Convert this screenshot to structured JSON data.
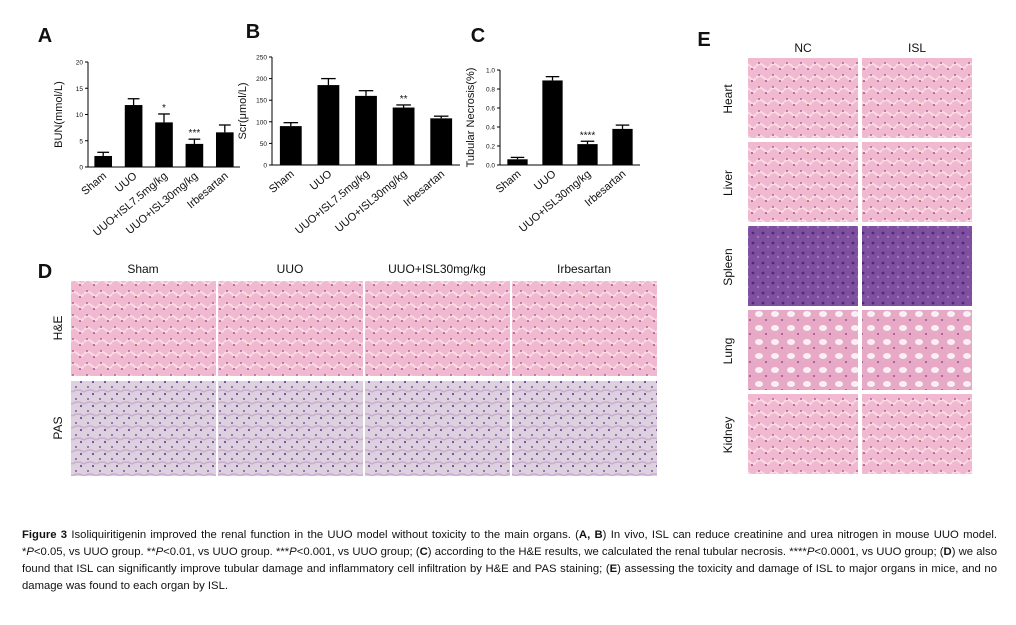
{
  "chart_data": [
    {
      "type": "bar",
      "label": "A",
      "ylabel": "BUN(mmol/L)",
      "categories": [
        "Sham",
        "UUO",
        "UUO+ISL7.5mg/kg",
        "UUO+ISL30mg/kg",
        "Irbesartan"
      ],
      "values": [
        2.1,
        11.8,
        8.5,
        4.4,
        6.6
      ],
      "errors": [
        0.7,
        1.2,
        1.6,
        0.9,
        1.4
      ],
      "significance": [
        null,
        null,
        "*",
        "***",
        null
      ],
      "color": "#000000",
      "ylim": [
        0,
        20
      ],
      "yticks": [
        0,
        5,
        10,
        15,
        20
      ]
    },
    {
      "type": "bar",
      "label": "B",
      "ylabel": "Scr(μmol/L)",
      "categories": [
        "Sham",
        "UUO",
        "UUO+ISL7.5mg/kg",
        "UUO+ISL30mg/kg",
        "Irbesartan"
      ],
      "values": [
        90,
        185,
        160,
        133,
        108
      ],
      "errors": [
        8,
        15,
        12,
        6,
        5
      ],
      "significance": [
        null,
        null,
        null,
        "**",
        null
      ],
      "color": "#000000",
      "ylim": [
        0,
        250
      ],
      "yticks": [
        0,
        50,
        100,
        150,
        200,
        250
      ]
    },
    {
      "type": "bar",
      "label": "C",
      "ylabel": "Tubular Necrosis(%)",
      "categories": [
        "Sham",
        "UUO",
        "UUO+ISL30mg/kg",
        "Irbesartan"
      ],
      "values": [
        0.06,
        0.89,
        0.22,
        0.38
      ],
      "errors": [
        0.02,
        0.04,
        0.03,
        0.04
      ],
      "significance": [
        null,
        null,
        "****",
        null
      ],
      "color": "#000000",
      "ylim": [
        0,
        1.0
      ],
      "yticks": [
        {
          "value": 0,
          "label": "0.0"
        },
        0.2,
        0.4,
        0.6,
        0.8,
        {
          "value": 1,
          "label": "1.0"
        }
      ]
    }
  ],
  "panel_d": {
    "label": "D",
    "columns": [
      "Sham",
      "UUO",
      "UUO+ISL30mg/kg",
      "Irbesartan"
    ],
    "rows": [
      "H&E",
      "PAS"
    ]
  },
  "panel_e": {
    "label": "E",
    "columns": [
      "NC",
      "ISL"
    ],
    "rows": [
      "Heart",
      "Liver",
      "Spleen",
      "Lung",
      "Kidney"
    ]
  },
  "caption": [
    {
      "text": "Figure 3",
      "bold": true
    },
    {
      "text": " Isoliquiritigenin improved the renal function in the UUO model without toxicity to the main organs. ("
    },
    {
      "text": "A, B",
      "bold": true
    },
    {
      "text": ") In vivo, ISL can reduce creatinine and urea nitrogen in mouse UUO model. *"
    },
    {
      "text": "P",
      "italic": true
    },
    {
      "text": "<0.05, vs UUO group. **"
    },
    {
      "text": "P",
      "italic": true
    },
    {
      "text": "<0.01, vs UUO group. ***"
    },
    {
      "text": "P",
      "italic": true
    },
    {
      "text": "<0.001, vs UUO group; ("
    },
    {
      "text": "C",
      "bold": true
    },
    {
      "text": ") according to the H&E results, we calculated the renal tubular necrosis. ****"
    },
    {
      "text": "P",
      "italic": true
    },
    {
      "text": "<0.0001, vs UUO group; ("
    },
    {
      "text": "D",
      "bold": true
    },
    {
      "text": ") we also found that ISL can significantly improve tubular damage and inflammatory cell infiltration by H&E and PAS staining; ("
    },
    {
      "text": "E",
      "bold": true
    },
    {
      "text": ") assessing the toxicity and damage of ISL to major organs in mice, and no damage was found to each organ by ISL."
    }
  ]
}
